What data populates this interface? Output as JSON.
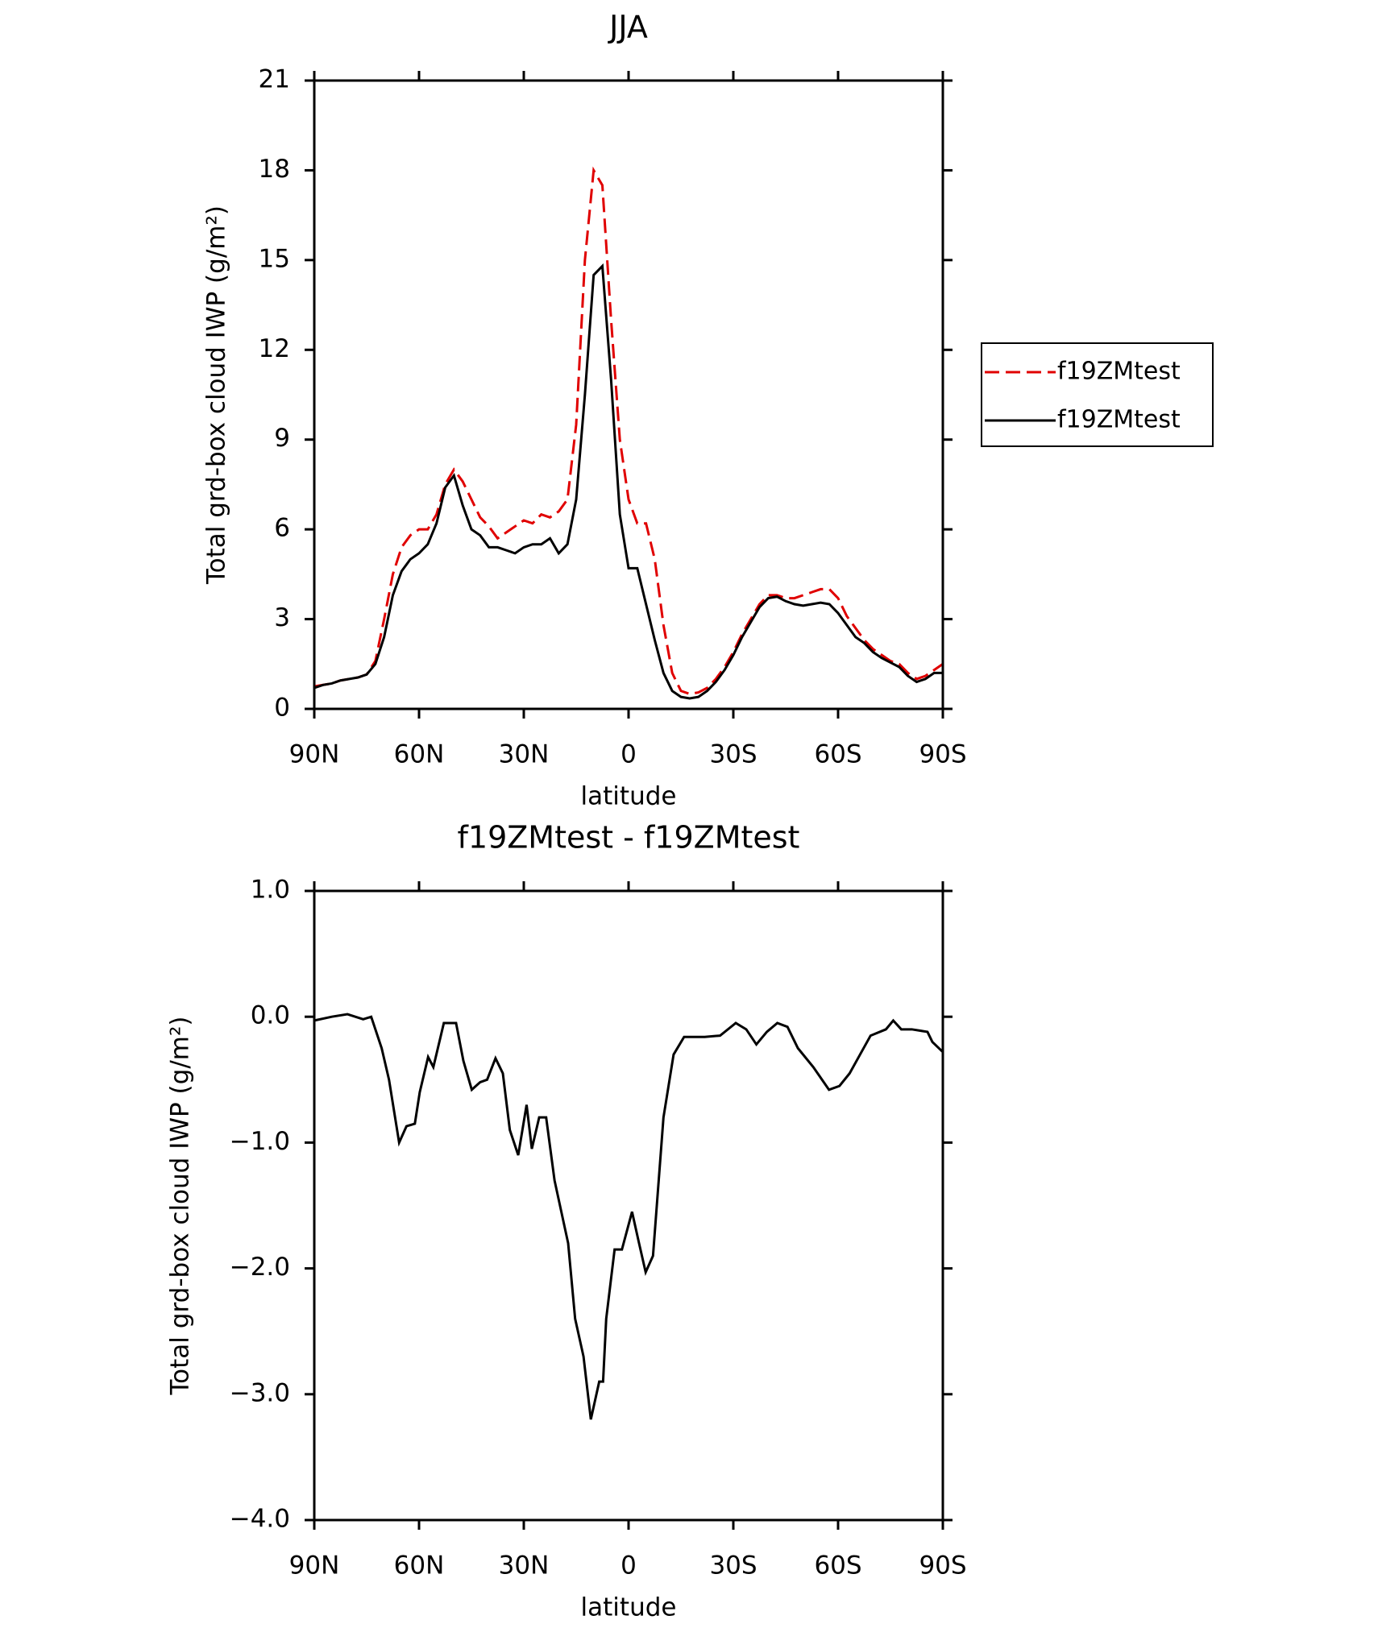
{
  "chart_data": [
    {
      "type": "line",
      "title": "JJA",
      "x_label": "latitude",
      "y_label": "Total grd-box cloud IWP (g/m²)",
      "x": [
        90,
        87.5,
        85,
        82.5,
        80,
        77.5,
        75,
        72.5,
        70,
        67.5,
        65,
        62.5,
        60,
        57.5,
        55,
        52.5,
        50,
        47.5,
        45,
        42.5,
        40,
        37.5,
        35,
        32.5,
        30,
        27.5,
        25,
        22.5,
        20,
        17.5,
        15,
        12.5,
        10,
        7.5,
        5,
        2.5,
        0,
        -2.5,
        -5,
        -7.5,
        -10,
        -12.5,
        -15,
        -17.5,
        -20,
        -22.5,
        -25,
        -27.5,
        -30,
        -32.5,
        -35,
        -37.5,
        -40,
        -42.5,
        -45,
        -47.5,
        -50,
        -52.5,
        -55,
        -57.5,
        -60,
        -62.5,
        -65,
        -67.5,
        -70,
        -72.5,
        -75,
        -77.5,
        -80,
        -82.5,
        -85,
        -87.5,
        -90
      ],
      "series": [
        {
          "name": "f19ZMtest",
          "color": "#e00000",
          "line_style": "dashed",
          "values": [
            0.75,
            0.8,
            0.85,
            0.95,
            1.0,
            1.05,
            1.15,
            1.6,
            3.0,
            4.5,
            5.4,
            5.8,
            6.0,
            6.0,
            6.5,
            7.5,
            8.0,
            7.6,
            7.0,
            6.4,
            6.1,
            5.7,
            5.9,
            6.1,
            6.3,
            6.2,
            6.5,
            6.4,
            6.6,
            7.0,
            9.5,
            15.0,
            18.0,
            17.5,
            13.0,
            9.0,
            7.0,
            6.2,
            6.2,
            5.0,
            2.8,
            1.2,
            0.6,
            0.5,
            0.55,
            0.7,
            1.0,
            1.4,
            1.9,
            2.5,
            3.0,
            3.5,
            3.8,
            3.8,
            3.7,
            3.7,
            3.8,
            3.9,
            4.0,
            4.0,
            3.7,
            3.1,
            2.7,
            2.3,
            2.0,
            1.8,
            1.6,
            1.5,
            1.2,
            1.0,
            1.1,
            1.3,
            1.5
          ]
        },
        {
          "name": "f19ZMtest",
          "color": "#000000",
          "line_style": "solid",
          "values": [
            0.7,
            0.8,
            0.85,
            0.95,
            1.0,
            1.05,
            1.15,
            1.5,
            2.4,
            3.8,
            4.6,
            5.0,
            5.2,
            5.5,
            6.2,
            7.4,
            7.8,
            6.8,
            6.0,
            5.8,
            5.4,
            5.4,
            5.3,
            5.2,
            5.4,
            5.5,
            5.5,
            5.7,
            5.2,
            5.5,
            7.0,
            10.5,
            14.5,
            14.8,
            11.0,
            6.5,
            4.7,
            4.7,
            3.5,
            2.3,
            1.2,
            0.6,
            0.4,
            0.35,
            0.4,
            0.6,
            0.9,
            1.3,
            1.8,
            2.4,
            2.9,
            3.4,
            3.7,
            3.75,
            3.6,
            3.5,
            3.45,
            3.5,
            3.55,
            3.5,
            3.2,
            2.8,
            2.4,
            2.2,
            1.9,
            1.7,
            1.55,
            1.4,
            1.1,
            0.9,
            1.0,
            1.2,
            1.2
          ]
        }
      ],
      "xlim": [
        90,
        -90
      ],
      "xticks": [
        {
          "value": 90,
          "label": "90N"
        },
        {
          "value": 60,
          "label": "60N"
        },
        {
          "value": 30,
          "label": "30N"
        },
        0,
        {
          "value": -30,
          "label": "30S"
        },
        {
          "value": -60,
          "label": "60S"
        },
        {
          "value": -90,
          "label": "90S"
        }
      ],
      "ylim": [
        0,
        21
      ],
      "yticks": [
        0,
        3,
        6,
        9,
        12,
        15,
        18,
        21
      ],
      "legend": "right"
    },
    {
      "type": "line",
      "title": "f19ZMtest - f19ZMtest",
      "x_label": "latitude",
      "y_label": "Total grd-box cloud IWP (g/m²)",
      "x": [
        90,
        85,
        80.5,
        76,
        73.7,
        70.7,
        68.6,
        65.7,
        63.6,
        61.2,
        59.8,
        57.4,
        55.9,
        52.9,
        49.4,
        47.3,
        44.9,
        42.5,
        40.5,
        38.1,
        36,
        34,
        31.6,
        29.2,
        27.7,
        25.6,
        23.6,
        21.2,
        17.3,
        15.3,
        12.9,
        10.8,
        8.4,
        7.3,
        6.4,
        4,
        1.9,
        -1,
        -3,
        -4.9,
        -7,
        -10,
        -12.9,
        -15.9,
        -21.8,
        -26.2,
        -30.7,
        -33.7,
        -36.6,
        -39.6,
        -42.6,
        -45.5,
        -48.5,
        -52.9,
        -57.4,
        -60.4,
        -63.3,
        -66.3,
        -69.3,
        -73.7,
        -75.8,
        -78.1,
        -81.1,
        -85.6,
        -87,
        -90
      ],
      "series": [
        {
          "name": "f19ZMtest - f19ZMtest",
          "color": "#000000",
          "line_style": "solid",
          "values": [
            -0.03,
            0.0,
            0.02,
            -0.02,
            0.0,
            -0.25,
            -0.5,
            -1.0,
            -0.87,
            -0.85,
            -0.6,
            -0.32,
            -0.4,
            -0.05,
            -0.05,
            -0.35,
            -0.58,
            -0.52,
            -0.5,
            -0.33,
            -0.45,
            -0.9,
            -1.1,
            -0.7,
            -1.05,
            -0.8,
            -0.8,
            -1.3,
            -1.8,
            -2.4,
            -2.7,
            -3.2,
            -2.9,
            -2.9,
            -2.4,
            -1.85,
            -1.85,
            -1.55,
            -1.8,
            -2.03,
            -1.9,
            -0.8,
            -0.3,
            -0.16,
            -0.16,
            -0.15,
            -0.05,
            -0.1,
            -0.22,
            -0.12,
            -0.05,
            -0.08,
            -0.25,
            -0.4,
            -0.58,
            -0.55,
            -0.45,
            -0.3,
            -0.15,
            -0.1,
            -0.03,
            -0.1,
            -0.1,
            -0.12,
            -0.2,
            -0.28
          ]
        }
      ],
      "xlim": [
        90,
        -90
      ],
      "xticks": [
        {
          "value": 90,
          "label": "90N"
        },
        {
          "value": 60,
          "label": "60N"
        },
        {
          "value": 30,
          "label": "30N"
        },
        0,
        {
          "value": -30,
          "label": "30S"
        },
        {
          "value": -60,
          "label": "60S"
        },
        {
          "value": -90,
          "label": "90S"
        }
      ],
      "ylim": [
        -4,
        1
      ],
      "yticks": [
        {
          "value": -4,
          "label": "−4.0"
        },
        {
          "value": -3,
          "label": "−3.0"
        },
        {
          "value": -2,
          "label": "−2.0"
        },
        {
          "value": -1,
          "label": "−1.0"
        },
        {
          "value": 0,
          "label": "0.0"
        },
        {
          "value": 1,
          "label": "1.0"
        }
      ]
    }
  ]
}
